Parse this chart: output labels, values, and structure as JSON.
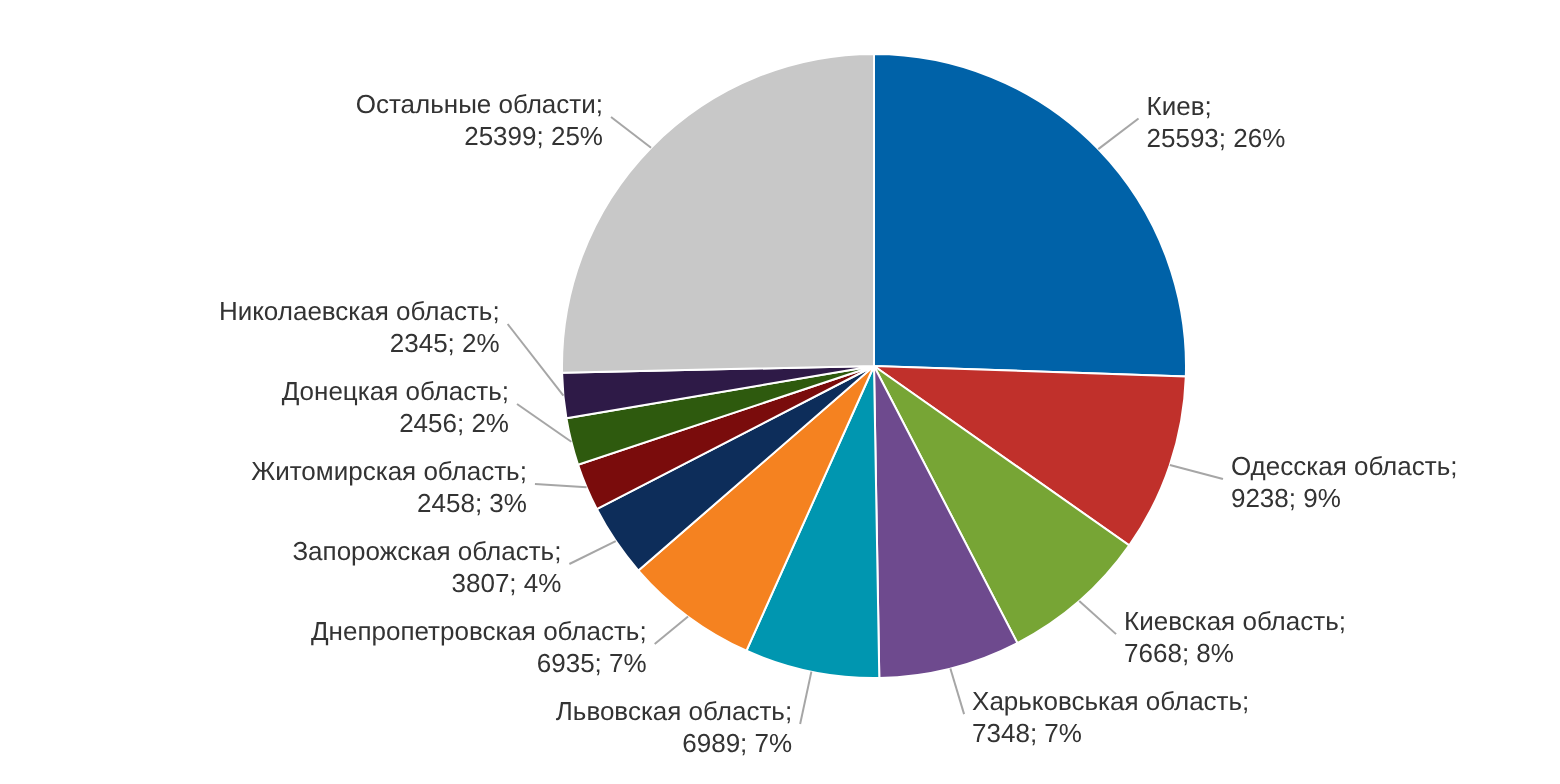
{
  "chart_data": {
    "type": "pie",
    "categories": [
      "Киев",
      "Одесская область",
      "Киевская область",
      "Харьковськая область",
      "Львовская область",
      "Днепропетровская область",
      "Запорожская область",
      "Житомирская область",
      "Донецкая область",
      "Николаевская область",
      "Остальные области"
    ],
    "values": [
      25593,
      9238,
      7668,
      7348,
      6989,
      6935,
      3807,
      2458,
      2456,
      2345,
      25399
    ],
    "value_labels": [
      "; 25593; 26%",
      "; 9238; 9%",
      "; 7668; 8%",
      "; 7348; 7%",
      "; 6989; 7%",
      "; 6935; 7%",
      "; 3807; 4%",
      "; 2458; 3%",
      "; 2456; 2%",
      "; 2345; 2%",
      "; 25399; 25%"
    ],
    "colors": [
      "#0062a8",
      "#c0302b",
      "#77a535",
      "#6e4a8e",
      "#0096b0",
      "#f58220",
      "#0d2d5a",
      "#7a0c0c",
      "#2e5a0e",
      "#2e1a47",
      "#c8c8c8"
    ]
  }
}
